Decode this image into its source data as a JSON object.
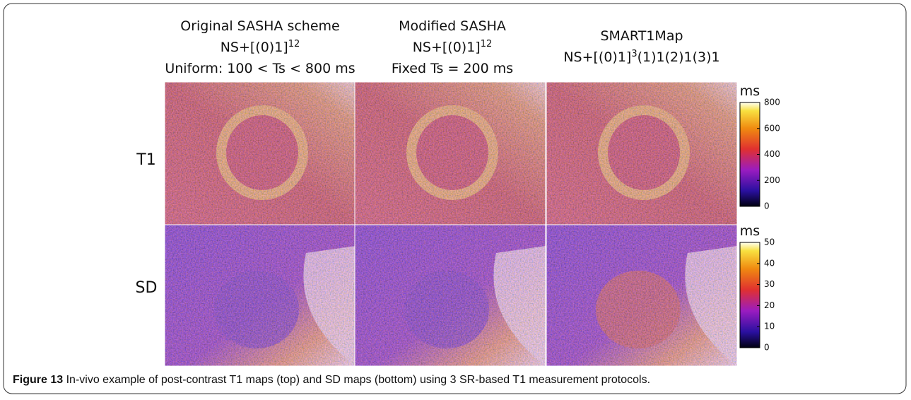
{
  "figure": {
    "columns": [
      {
        "lines": [
          "Original SASHA scheme",
          {
            "base": "NS+[(0)1]",
            "sup": "12"
          },
          "Uniform: 100 < Ts < 800 ms"
        ]
      },
      {
        "lines": [
          "Modified SASHA",
          {
            "base": "NS+[(0)1]",
            "sup": "12"
          },
          "Fixed Ts  = 200 ms"
        ]
      },
      {
        "lines": [
          "SMART1Map",
          {
            "base": "NS+[(0)1]",
            "sup": "3",
            "after": "(1)1(2)1(3)1"
          }
        ]
      }
    ],
    "rows": [
      "T1",
      "SD"
    ],
    "colorbars": [
      {
        "unit": "ms",
        "lim": [
          0,
          800
        ],
        "ticks": [
          0,
          200,
          400,
          600,
          800
        ]
      },
      {
        "unit": "ms",
        "lim": [
          0,
          50
        ],
        "ticks": [
          0,
          10,
          20,
          30,
          40,
          50
        ]
      }
    ],
    "caption": {
      "label": "Figure 13",
      "text": "In-vivo example of post-contrast T1 maps (top) and SD maps (bottom) using 3 SR-based T1 measurement protocols."
    }
  }
}
